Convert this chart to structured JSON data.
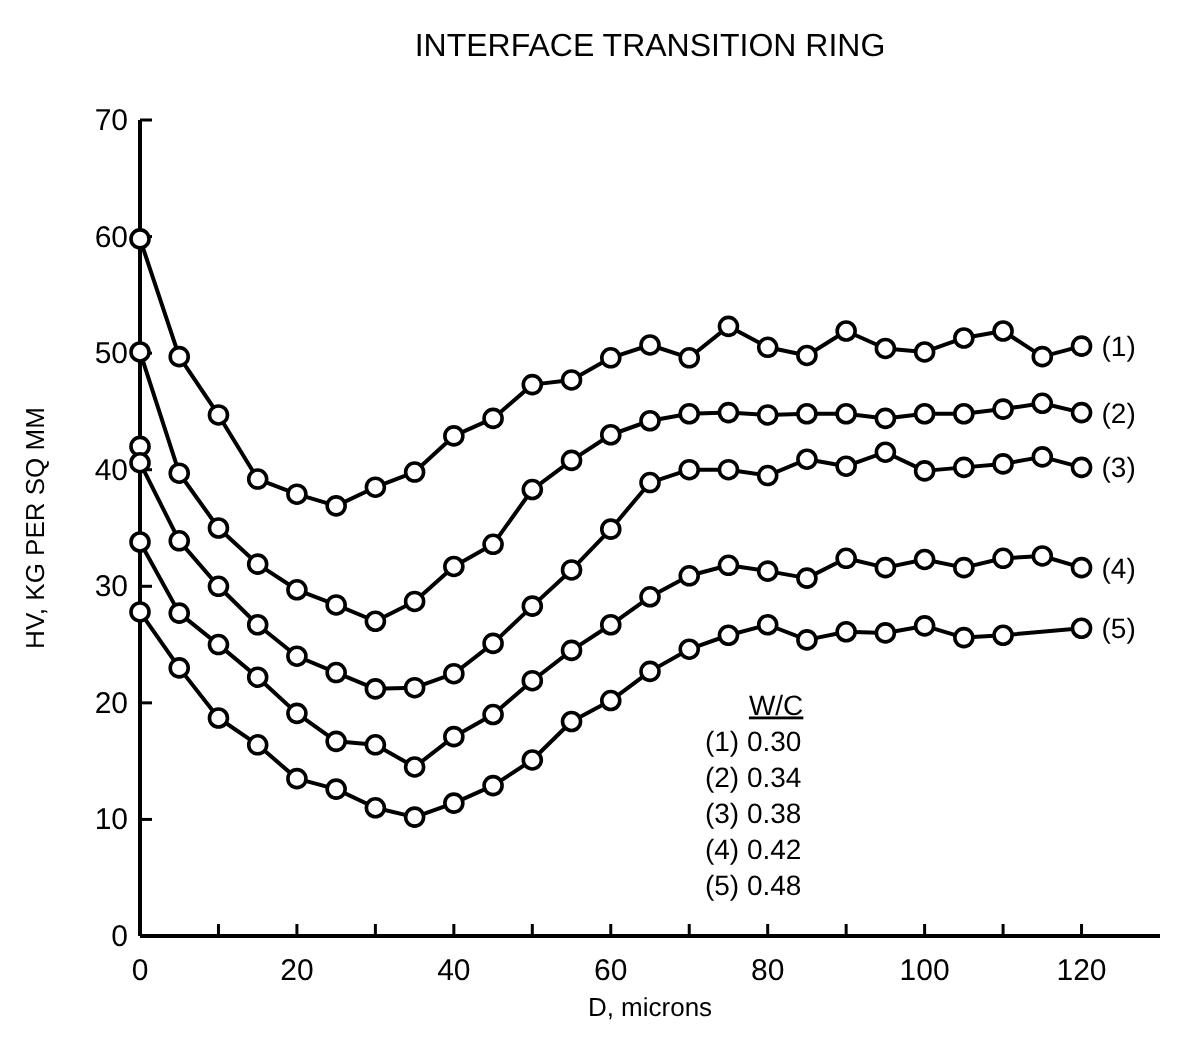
{
  "chart_data": {
    "type": "line",
    "title": "INTERFACE TRANSITION RING",
    "xlabel": "D, microns",
    "ylabel": "HV, KG PER SQ MM",
    "xlim": [
      0,
      130
    ],
    "ylim": [
      0,
      70
    ],
    "xticks": [
      0,
      {
        "value": 10,
        "label": null
      },
      20,
      {
        "value": 30,
        "label": null
      },
      40,
      {
        "value": 50,
        "label": null
      },
      60,
      {
        "value": 70,
        "label": null
      },
      80,
      {
        "value": 90,
        "label": null
      },
      100,
      {
        "value": 110,
        "label": null
      },
      120
    ],
    "yticks": [
      0,
      10,
      20,
      30,
      40,
      50,
      60,
      70
    ],
    "grid": false,
    "marker": "circle",
    "line_style": "solid",
    "annotations": [
      "W/C",
      "(1)  0.30",
      "(2)  0.34",
      "(3)  0.38",
      "(4)  0.42",
      "(5)  0.48"
    ],
    "series": [
      {
        "name": "(1)",
        "color": "#000000",
        "x": [
          0,
          5,
          10,
          15,
          20,
          25,
          30,
          35,
          40,
          45,
          50,
          55,
          60,
          65,
          70,
          75,
          80,
          85,
          90,
          95,
          100,
          105,
          110,
          115,
          120
        ],
        "values": [
          59.8,
          49.7,
          44.7,
          39.2,
          37.9,
          36.9,
          38.5,
          39.8,
          42.9,
          44.4,
          47.3,
          47.7,
          49.6,
          50.7,
          49.6,
          52.3,
          50.5,
          49.8,
          51.9,
          50.4,
          50.1,
          51.3,
          51.9,
          49.7,
          50.6
        ]
      },
      {
        "name": "(2)",
        "color": "#000000",
        "x": [
          0,
          5,
          10,
          15,
          20,
          25,
          30,
          35,
          40,
          45,
          50,
          55,
          60,
          65,
          70,
          75,
          80,
          85,
          90,
          95,
          100,
          105,
          110,
          115,
          120
        ],
        "values": [
          50.1,
          39.7,
          35.0,
          31.9,
          29.7,
          28.4,
          27.0,
          28.7,
          31.7,
          33.6,
          38.3,
          40.8,
          43.0,
          44.2,
          44.8,
          44.9,
          44.7,
          44.8,
          44.8,
          44.4,
          44.8,
          44.8,
          45.2,
          45.7,
          44.9
        ]
      },
      {
        "name": "(3)",
        "color": "#000000",
        "x": [
          0,
          0,
          5,
          10,
          15,
          20,
          25,
          30,
          35,
          40,
          45,
          50,
          55,
          60,
          65,
          70,
          75,
          80,
          85,
          90,
          95,
          100,
          105,
          110,
          115,
          120
        ],
        "values": [
          42.0,
          40.6,
          33.9,
          30.0,
          26.7,
          24.0,
          22.6,
          21.2,
          21.3,
          22.5,
          25.1,
          28.3,
          31.4,
          34.9,
          38.9,
          40.0,
          40.0,
          39.5,
          40.9,
          40.3,
          41.5,
          39.9,
          40.2,
          40.5,
          41.1,
          40.2
        ]
      },
      {
        "name": "(4)",
        "color": "#000000",
        "x": [
          0,
          5,
          10,
          15,
          20,
          25,
          30,
          35,
          40,
          45,
          50,
          55,
          60,
          65,
          70,
          75,
          80,
          85,
          90,
          95,
          100,
          105,
          110,
          115,
          120
        ],
        "values": [
          33.8,
          27.7,
          25.0,
          22.2,
          19.1,
          16.7,
          16.4,
          14.5,
          17.1,
          19.0,
          21.9,
          24.5,
          26.7,
          29.1,
          30.9,
          31.8,
          31.3,
          30.7,
          32.4,
          31.6,
          32.3,
          31.6,
          32.4,
          32.6,
          31.6
        ]
      },
      {
        "name": "(5)",
        "color": "#000000",
        "x": [
          0,
          5,
          10,
          15,
          20,
          25,
          30,
          35,
          40,
          45,
          50,
          55,
          60,
          65,
          70,
          75,
          80,
          85,
          90,
          95,
          100,
          105,
          110,
          120
        ],
        "values": [
          27.8,
          23.0,
          18.7,
          16.4,
          13.5,
          12.6,
          11.0,
          10.2,
          11.4,
          12.9,
          15.1,
          18.4,
          20.2,
          22.7,
          24.6,
          25.8,
          26.7,
          25.4,
          26.1,
          26.0,
          26.6,
          25.6,
          25.8,
          26.4
        ]
      }
    ]
  }
}
